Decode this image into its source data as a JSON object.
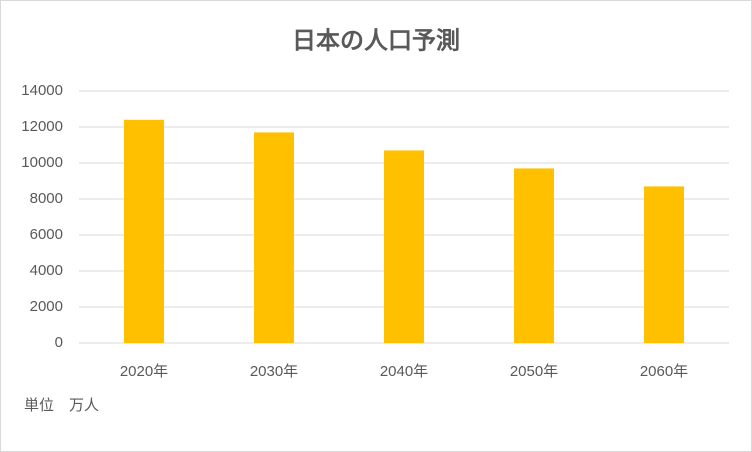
{
  "chart_data": {
    "type": "bar",
    "title": "日本の人口予測",
    "categories": [
      "2020年",
      "2030年",
      "2040年",
      "2050年",
      "2060年"
    ],
    "values": [
      12400,
      11700,
      10700,
      9700,
      8700
    ],
    "color": "#ffc000",
    "ylim": [
      0,
      14000
    ],
    "yticks": [
      0,
      2000,
      4000,
      6000,
      8000,
      10000,
      12000,
      14000
    ],
    "grid": true,
    "annotation": "単位　万人"
  }
}
